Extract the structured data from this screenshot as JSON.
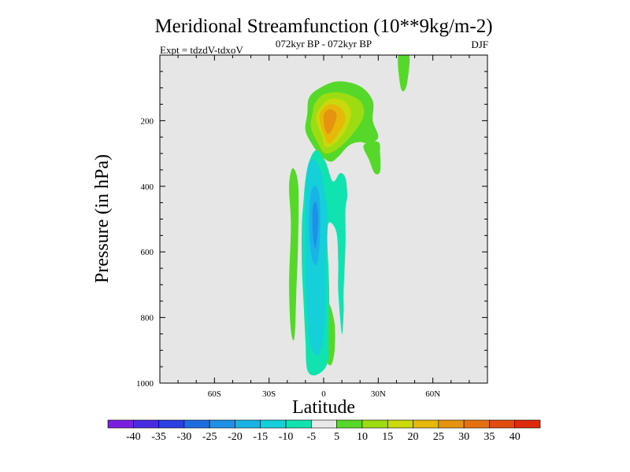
{
  "header": {
    "title": "Meridional Streamfunction (10**9kg/m-2)",
    "subtitle": "072kyr BP - 072kyr BP",
    "experiment": "Expt = tdzdV-tdxoV",
    "season": "DJF"
  },
  "chart_data": {
    "type": "contour-filled",
    "title": "Meridional Streamfunction (10**9kg/m-2)",
    "xlabel": "Latitude",
    "ylabel": "Pressure (in hPa)",
    "xlim": [
      -90,
      90
    ],
    "ylim": [
      1000,
      0
    ],
    "x_ticks": [
      {
        "value": -60,
        "label": "60S"
      },
      {
        "value": -30,
        "label": "30S"
      },
      {
        "value": 0,
        "label": "0"
      },
      {
        "value": 30,
        "label": "30N"
      },
      {
        "value": 60,
        "label": "60N"
      }
    ],
    "y_ticks": [
      {
        "value": 200,
        "label": "200"
      },
      {
        "value": 400,
        "label": "400"
      },
      {
        "value": 600,
        "label": "600"
      },
      {
        "value": 800,
        "label": "800"
      },
      {
        "value": 1000,
        "label": "1000"
      }
    ],
    "background_color": "#e6e6e6",
    "colorbar": {
      "labels": [
        "-40",
        "-35",
        "-30",
        "-25",
        "-20",
        "-15",
        "-10",
        "-5",
        "5",
        "10",
        "15",
        "20",
        "25",
        "30",
        "35",
        "40"
      ],
      "colors": [
        "#7a1fe0",
        "#4b2be0",
        "#2e3fe0",
        "#1e6de0",
        "#1e90e6",
        "#19b3e6",
        "#15d0d8",
        "#10e3b0",
        "#e8e8e8",
        "#55d82a",
        "#9ddc12",
        "#cbd80b",
        "#e6b80a",
        "#e69410",
        "#e6700f",
        "#e04b10",
        "#dc2a0a"
      ]
    },
    "regions": [
      {
        "name": "positive-upper-core",
        "level": 25,
        "color": "#e69410",
        "points": [
          [
            0.5,
            175
          ],
          [
            4,
            165
          ],
          [
            7,
            180
          ],
          [
            6,
            210
          ],
          [
            3,
            240
          ],
          [
            1,
            230
          ],
          [
            0,
            200
          ]
        ]
      },
      {
        "name": "positive-upper-20",
        "level": 20,
        "color": "#e6b80a",
        "points": [
          [
            -2,
            175
          ],
          [
            3,
            150
          ],
          [
            9,
            160
          ],
          [
            12,
            195
          ],
          [
            8,
            240
          ],
          [
            3,
            270
          ],
          [
            0,
            240
          ],
          [
            -2,
            205
          ]
        ]
      },
      {
        "name": "positive-upper-15",
        "level": 15,
        "color": "#cbd80b",
        "points": [
          [
            -3,
            170
          ],
          [
            3,
            135
          ],
          [
            11,
            140
          ],
          [
            15,
            175
          ],
          [
            12,
            230
          ],
          [
            6,
            270
          ],
          [
            1,
            280
          ],
          [
            -1,
            245
          ],
          [
            -4,
            200
          ]
        ]
      },
      {
        "name": "positive-upper-10",
        "level": 10,
        "color": "#9ddc12",
        "points": [
          [
            -5,
            150
          ],
          [
            0,
            120
          ],
          [
            10,
            115
          ],
          [
            20,
            140
          ],
          [
            22,
            185
          ],
          [
            16,
            240
          ],
          [
            8,
            285
          ],
          [
            1,
            300
          ],
          [
            -3,
            270
          ],
          [
            -7,
            220
          ],
          [
            -6,
            175
          ]
        ]
      },
      {
        "name": "positive-upper-5",
        "level": 5,
        "color": "#55d82a",
        "points": [
          [
            -8,
            130
          ],
          [
            -2,
            100
          ],
          [
            8,
            80
          ],
          [
            20,
            95
          ],
          [
            27,
            140
          ],
          [
            27,
            200
          ],
          [
            30,
            250
          ],
          [
            25,
            270
          ],
          [
            20,
            265
          ],
          [
            14,
            275
          ],
          [
            8,
            310
          ],
          [
            4,
            325
          ],
          [
            -1,
            310
          ],
          [
            -6,
            275
          ],
          [
            -10,
            230
          ],
          [
            -9,
            180
          ]
        ]
      },
      {
        "name": "positive-far-north",
        "level": 5,
        "color": "#55d82a",
        "points": [
          [
            41,
            0
          ],
          [
            47,
            0
          ],
          [
            46,
            80
          ],
          [
            44,
            110
          ],
          [
            42,
            90
          ]
        ]
      },
      {
        "name": "positive-north-strip",
        "level": 5,
        "color": "#55d82a",
        "points": [
          [
            22,
            275
          ],
          [
            30,
            265
          ],
          [
            31,
            300
          ],
          [
            31,
            355
          ],
          [
            28,
            360
          ],
          [
            25,
            320
          ]
        ]
      },
      {
        "name": "positive-west-strip",
        "level": 5,
        "color": "#55d82a",
        "points": [
          [
            -19,
            400
          ],
          [
            -17,
            345
          ],
          [
            -14,
            395
          ],
          [
            -14,
            560
          ],
          [
            -15,
            720
          ],
          [
            -16,
            860
          ],
          [
            -18,
            840
          ],
          [
            -19,
            700
          ],
          [
            -18,
            520
          ]
        ]
      },
      {
        "name": "positive-lower",
        "level": 5,
        "color": "#55d82a",
        "points": [
          [
            1,
            820
          ],
          [
            3,
            760
          ],
          [
            6,
            820
          ],
          [
            6,
            900
          ],
          [
            4,
            945
          ],
          [
            1,
            920
          ]
        ]
      },
      {
        "name": "negative-outer",
        "level": -5,
        "color": "#10e3b0",
        "points": [
          [
            -8,
            325
          ],
          [
            -4,
            290
          ],
          [
            1,
            325
          ],
          [
            5,
            385
          ],
          [
            9,
            360
          ],
          [
            12,
            375
          ],
          [
            13,
            430
          ],
          [
            12,
            470
          ],
          [
            12,
            580
          ],
          [
            11,
            720
          ],
          [
            11,
            780
          ],
          [
            10,
            850
          ],
          [
            8,
            720
          ],
          [
            8,
            630
          ],
          [
            7,
            540
          ],
          [
            3,
            510
          ],
          [
            2,
            560
          ],
          [
            3,
            700
          ],
          [
            3,
            850
          ],
          [
            2,
            940
          ],
          [
            -4,
            975
          ],
          [
            -9,
            960
          ],
          [
            -10,
            870
          ],
          [
            -11,
            760
          ],
          [
            -12,
            640
          ],
          [
            -12,
            520
          ],
          [
            -11,
            440
          ],
          [
            -10,
            380
          ]
        ]
      },
      {
        "name": "negative-10",
        "level": -10,
        "color": "#15d0d8",
        "points": [
          [
            -9,
            350
          ],
          [
            -6,
            318
          ],
          [
            -2,
            345
          ],
          [
            0,
            400
          ],
          [
            2,
            470
          ],
          [
            2,
            545
          ],
          [
            1,
            650
          ],
          [
            1,
            760
          ],
          [
            0,
            860
          ],
          [
            -3,
            915
          ],
          [
            -7,
            890
          ],
          [
            -9,
            800
          ],
          [
            -10,
            680
          ],
          [
            -10,
            560
          ],
          [
            -10,
            450
          ]
        ]
      },
      {
        "name": "negative-15",
        "level": -15,
        "color": "#19b3e6",
        "points": [
          [
            -7,
            420
          ],
          [
            -4,
            400
          ],
          [
            -2,
            450
          ],
          [
            -2,
            550
          ],
          [
            -3,
            620
          ],
          [
            -5,
            640
          ],
          [
            -7,
            600
          ],
          [
            -8,
            520
          ]
        ]
      },
      {
        "name": "negative-20",
        "level": -20,
        "color": "#1e90e6",
        "points": [
          [
            -6,
            465
          ],
          [
            -4,
            450
          ],
          [
            -3,
            505
          ],
          [
            -4,
            575
          ],
          [
            -5,
            585
          ],
          [
            -6,
            540
          ]
        ]
      }
    ]
  }
}
